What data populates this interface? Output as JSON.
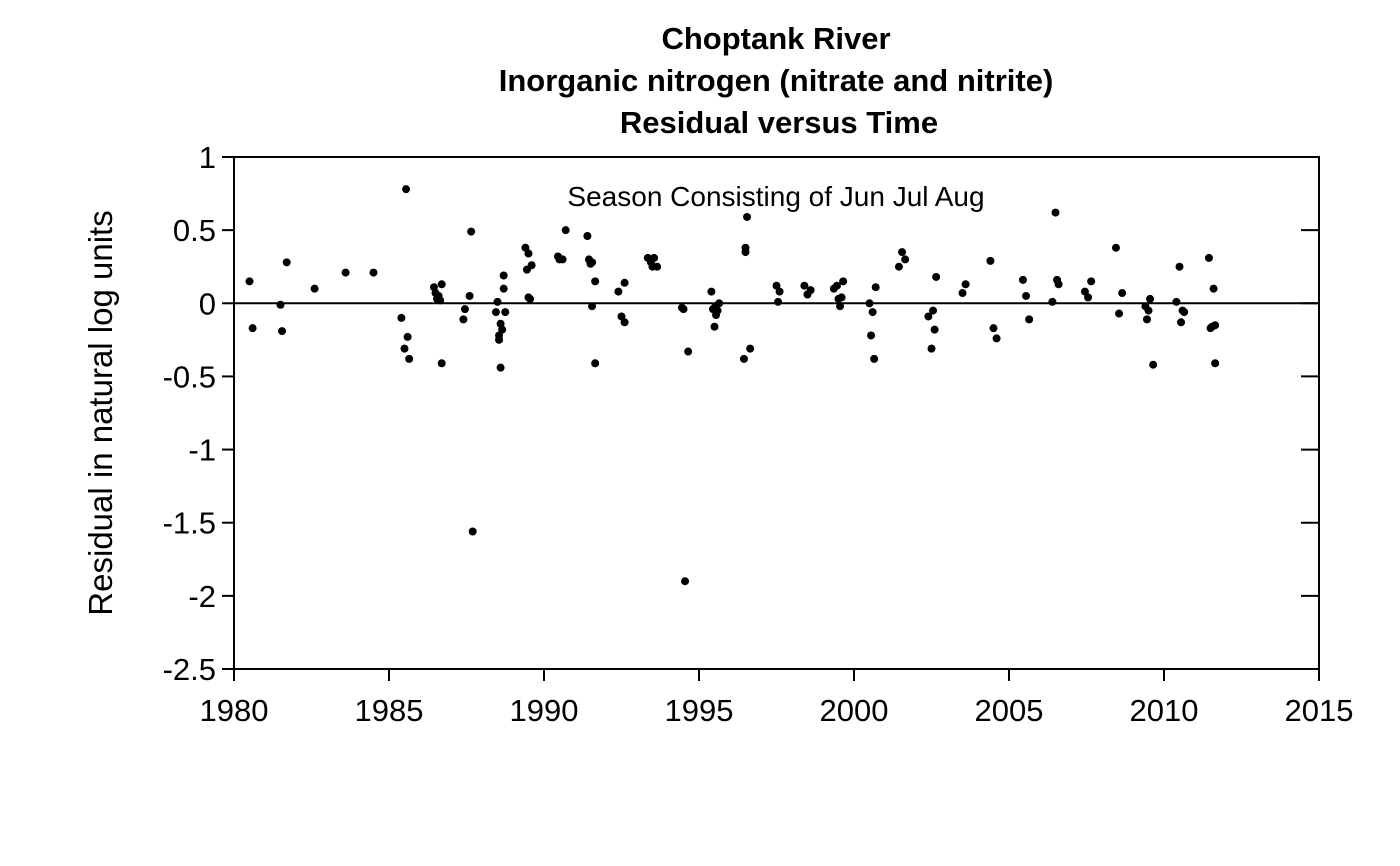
{
  "chart_data": {
    "type": "scatter",
    "title_lines": [
      "Choptank River",
      "Inorganic nitrogen (nitrate and nitrite)",
      "Residual versus Time"
    ],
    "annotation": "Season Consisting of Jun Jul Aug",
    "xlabel": "",
    "ylabel": "Residual in natural log units",
    "xlim": [
      1980,
      2015
    ],
    "ylim": [
      -2.5,
      1
    ],
    "xticks": [
      1980,
      1985,
      1990,
      1995,
      2000,
      2005,
      2010,
      2015
    ],
    "yticks": [
      1,
      0.5,
      0,
      -0.5,
      -1,
      -1.5,
      -2,
      -2.5
    ],
    "ytick_labels": [
      "1",
      "0.5",
      "0",
      "-0.5",
      "-1",
      "-1.5",
      "-2",
      "-2.5"
    ],
    "reference_line_y": 0,
    "marker_color": "#000000",
    "points": [
      [
        1980.5,
        0.15
      ],
      [
        1980.6,
        -0.17
      ],
      [
        1981.5,
        -0.01
      ],
      [
        1981.55,
        -0.19
      ],
      [
        1981.7,
        0.28
      ],
      [
        1982.6,
        0.1
      ],
      [
        1983.6,
        0.21
      ],
      [
        1984.5,
        0.21
      ],
      [
        1985.4,
        -0.1
      ],
      [
        1985.5,
        -0.31
      ],
      [
        1985.55,
        0.78
      ],
      [
        1985.6,
        -0.23
      ],
      [
        1985.65,
        -0.38
      ],
      [
        1986.45,
        0.11
      ],
      [
        1986.5,
        0.07
      ],
      [
        1986.55,
        0.03
      ],
      [
        1986.6,
        0.05
      ],
      [
        1986.65,
        0.02
      ],
      [
        1986.7,
        0.13
      ],
      [
        1986.7,
        -0.41
      ],
      [
        1987.4,
        -0.11
      ],
      [
        1987.45,
        -0.04
      ],
      [
        1987.6,
        0.05
      ],
      [
        1987.65,
        0.49
      ],
      [
        1987.7,
        -1.56
      ],
      [
        1988.45,
        -0.06
      ],
      [
        1988.5,
        0.01
      ],
      [
        1988.55,
        -0.22
      ],
      [
        1988.55,
        -0.25
      ],
      [
        1988.6,
        -0.44
      ],
      [
        1988.6,
        -0.14
      ],
      [
        1988.65,
        -0.18
      ],
      [
        1988.7,
        0.19
      ],
      [
        1988.7,
        0.1
      ],
      [
        1988.75,
        -0.06
      ],
      [
        1989.4,
        0.38
      ],
      [
        1989.45,
        0.23
      ],
      [
        1989.5,
        0.34
      ],
      [
        1989.5,
        0.04
      ],
      [
        1989.55,
        0.03
      ],
      [
        1989.6,
        0.26
      ],
      [
        1990.45,
        0.32
      ],
      [
        1990.5,
        0.3
      ],
      [
        1990.6,
        0.3
      ],
      [
        1990.7,
        0.5
      ],
      [
        1991.4,
        0.46
      ],
      [
        1991.45,
        0.3
      ],
      [
        1991.5,
        0.27
      ],
      [
        1991.55,
        0.28
      ],
      [
        1991.55,
        -0.02
      ],
      [
        1991.65,
        0.15
      ],
      [
        1991.65,
        -0.41
      ],
      [
        1992.4,
        0.08
      ],
      [
        1992.5,
        -0.09
      ],
      [
        1992.6,
        0.14
      ],
      [
        1992.6,
        -0.13
      ],
      [
        1993.35,
        0.31
      ],
      [
        1993.45,
        0.28
      ],
      [
        1993.5,
        0.25
      ],
      [
        1993.55,
        0.31
      ],
      [
        1993.65,
        0.25
      ],
      [
        1994.45,
        -0.03
      ],
      [
        1994.5,
        -0.04
      ],
      [
        1994.55,
        -1.9
      ],
      [
        1994.65,
        -0.33
      ],
      [
        1995.4,
        0.08
      ],
      [
        1995.45,
        -0.04
      ],
      [
        1995.5,
        -0.03
      ],
      [
        1995.5,
        -0.16
      ],
      [
        1995.55,
        -0.08
      ],
      [
        1995.6,
        -0.05
      ],
      [
        1995.65,
        0.0
      ],
      [
        1996.45,
        -0.38
      ],
      [
        1996.5,
        0.38
      ],
      [
        1996.5,
        0.35
      ],
      [
        1996.55,
        0.59
      ],
      [
        1996.65,
        -0.31
      ],
      [
        1997.5,
        0.12
      ],
      [
        1997.55,
        0.01
      ],
      [
        1997.6,
        0.08
      ],
      [
        1998.4,
        0.12
      ],
      [
        1998.5,
        0.06
      ],
      [
        1998.6,
        0.09
      ],
      [
        1999.35,
        0.1
      ],
      [
        1999.45,
        0.12
      ],
      [
        1999.5,
        0.03
      ],
      [
        1999.55,
        -0.02
      ],
      [
        1999.6,
        0.04
      ],
      [
        1999.65,
        0.15
      ],
      [
        2000.5,
        0.0
      ],
      [
        2000.55,
        -0.22
      ],
      [
        2000.6,
        -0.06
      ],
      [
        2000.65,
        -0.38
      ],
      [
        2000.7,
        0.11
      ],
      [
        2001.45,
        0.25
      ],
      [
        2001.55,
        0.35
      ],
      [
        2001.65,
        0.3
      ],
      [
        2002.4,
        -0.09
      ],
      [
        2002.5,
        -0.31
      ],
      [
        2002.55,
        -0.05
      ],
      [
        2002.6,
        -0.18
      ],
      [
        2002.65,
        0.18
      ],
      [
        2003.5,
        0.07
      ],
      [
        2003.6,
        0.13
      ],
      [
        2004.4,
        0.29
      ],
      [
        2004.5,
        -0.17
      ],
      [
        2004.6,
        -0.24
      ],
      [
        2005.45,
        0.16
      ],
      [
        2005.55,
        0.05
      ],
      [
        2005.65,
        -0.11
      ],
      [
        2006.4,
        0.01
      ],
      [
        2006.5,
        0.62
      ],
      [
        2006.55,
        0.16
      ],
      [
        2006.6,
        0.13
      ],
      [
        2007.45,
        0.08
      ],
      [
        2007.55,
        0.04
      ],
      [
        2007.65,
        0.15
      ],
      [
        2008.45,
        0.38
      ],
      [
        2008.55,
        -0.07
      ],
      [
        2008.65,
        0.07
      ],
      [
        2009.4,
        -0.02
      ],
      [
        2009.45,
        -0.11
      ],
      [
        2009.5,
        -0.05
      ],
      [
        2009.55,
        0.03
      ],
      [
        2009.65,
        -0.42
      ],
      [
        2010.4,
        0.01
      ],
      [
        2010.5,
        0.25
      ],
      [
        2010.55,
        -0.13
      ],
      [
        2010.6,
        -0.05
      ],
      [
        2010.65,
        -0.06
      ],
      [
        2011.45,
        0.31
      ],
      [
        2011.5,
        -0.17
      ],
      [
        2011.55,
        -0.16
      ],
      [
        2011.6,
        0.1
      ],
      [
        2011.65,
        -0.15
      ],
      [
        2011.65,
        -0.41
      ]
    ]
  }
}
